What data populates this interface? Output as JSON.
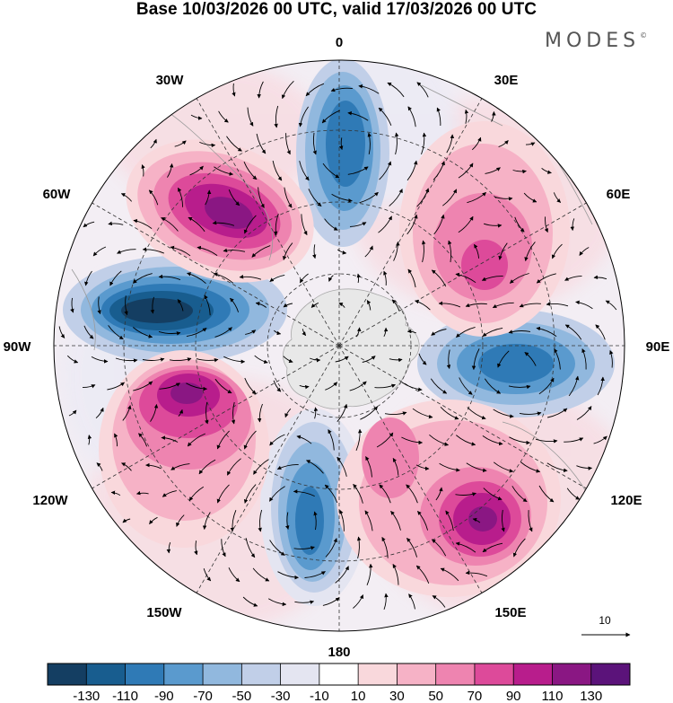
{
  "title": "Base 10/03/2026 00 UTC, valid 17/03/2026 00 UTC",
  "logo": "MODES",
  "logo_mark": "©",
  "longitude_labels": {
    "top": "0",
    "bottom": "180",
    "left": "90W",
    "right": "90E",
    "ul30": "30W",
    "ur30": "30E",
    "ul60": "60W",
    "ur60": "60E",
    "ll120": "120W",
    "lr120": "120E",
    "ll150": "150W",
    "lr150": "150E"
  },
  "reference_vector": {
    "label": "10"
  },
  "colorbar": {
    "labels": [
      "-130",
      "-110",
      "-90",
      "-70",
      "-50",
      "-30",
      "-10",
      "10",
      "30",
      "50",
      "70",
      "90",
      "110",
      "130"
    ],
    "colors": [
      "#143e62",
      "#185d8f",
      "#2f7ab6",
      "#5a9ace",
      "#91b8de",
      "#c1cfe8",
      "#e4e5f1",
      "#ffffff",
      "#f9d8dc",
      "#f6b2c6",
      "#ee84b0",
      "#dd4a9a",
      "#b81d8c",
      "#8a1783",
      "#5b137a"
    ]
  },
  "anomalies": [
    {
      "name": "neg-0",
      "lon": 5,
      "value": -85
    },
    {
      "name": "pos-25E",
      "lon": 30,
      "value": 60
    },
    {
      "name": "pos-50E",
      "lon": 55,
      "value": 75
    },
    {
      "name": "neg-95E",
      "lon": 95,
      "value": -95
    },
    {
      "name": "pos-125E",
      "lon": 125,
      "value": 60
    },
    {
      "name": "pos-145E",
      "lon": 145,
      "value": 110
    },
    {
      "name": "neg-170W",
      "lon": -172,
      "value": -85
    },
    {
      "name": "pos-118W",
      "lon": -118,
      "value": 105
    },
    {
      "name": "neg-82W",
      "lon": -82,
      "value": -135
    },
    {
      "name": "pos-45W",
      "lon": -45,
      "value": 115
    }
  ]
}
